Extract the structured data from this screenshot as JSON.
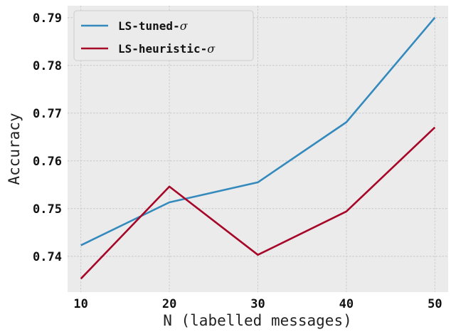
{
  "chart_data": {
    "type": "line",
    "xlabel": "N (labelled messages)",
    "ylabel": "Accuracy",
    "x": [
      10,
      20,
      30,
      40,
      50
    ],
    "xticks": [
      "10",
      "20",
      "30",
      "40",
      "50"
    ],
    "yticks": [
      "0.74",
      "0.75",
      "0.76",
      "0.77",
      "0.78",
      "0.79"
    ],
    "xlim": [
      8.5,
      51.5
    ],
    "ylim": [
      0.7325,
      0.7925
    ],
    "grid": true,
    "legend_position": "top-left",
    "series": [
      {
        "name": "LS-tuned-",
        "name_symbol": "σ",
        "color": "#348abd",
        "values": [
          0.7423,
          0.7513,
          0.7555,
          0.7681,
          0.79
        ]
      },
      {
        "name": "LS-heuristic-",
        "name_symbol": "σ",
        "color": "#a60628",
        "values": [
          0.7353,
          0.7546,
          0.7403,
          0.7494,
          0.767
        ]
      }
    ]
  }
}
